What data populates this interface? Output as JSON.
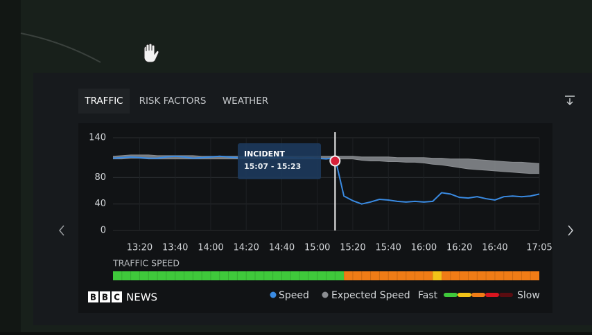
{
  "tabs": [
    "TRAFFIC",
    "RISK FACTORS",
    "WEATHER"
  ],
  "chart_data": {
    "type": "line",
    "x": [
      "13:05",
      "13:10",
      "13:15",
      "13:20",
      "13:25",
      "13:30",
      "13:35",
      "13:40",
      "13:45",
      "13:50",
      "13:55",
      "14:00",
      "14:05",
      "14:10",
      "14:15",
      "14:20",
      "14:25",
      "14:30",
      "14:35",
      "14:40",
      "14:45",
      "14:50",
      "14:55",
      "15:00",
      "15:05",
      "15:10",
      "15:15",
      "15:20",
      "15:25",
      "15:30",
      "15:35",
      "15:40",
      "15:45",
      "15:50",
      "15:55",
      "16:00",
      "16:05",
      "16:10",
      "16:15",
      "16:20",
      "16:25",
      "16:30",
      "16:35",
      "16:40",
      "16:45",
      "16:50",
      "16:55",
      "17:00",
      "17:05"
    ],
    "series": [
      {
        "name": "Speed",
        "color": "#3a8be3",
        "values": [
          109,
          110,
          111,
          110,
          109,
          109,
          111,
          112,
          111,
          109,
          110,
          111,
          112,
          111,
          110,
          111,
          112,
          110,
          110,
          111,
          110,
          109,
          110,
          109,
          108,
          110,
          52,
          45,
          40,
          43,
          47,
          46,
          44,
          43,
          44,
          43,
          44,
          57,
          55,
          50,
          49,
          51,
          48,
          46,
          51,
          52,
          51,
          52,
          55
        ]
      },
      {
        "name": "Expected Speed",
        "color": "#8b8e92",
        "values": [
          112,
          113,
          114,
          114,
          114,
          113,
          113,
          113,
          113,
          113,
          112,
          112,
          112,
          112,
          112,
          112,
          112,
          112,
          112,
          112,
          112,
          112,
          112,
          112,
          112,
          112,
          112,
          112,
          111,
          111,
          111,
          111,
          110,
          110,
          110,
          110,
          109,
          109,
          108,
          108,
          108,
          107,
          106,
          105,
          104,
          103,
          103,
          102,
          101
        ],
        "lower": [
          108,
          108,
          109,
          109,
          108,
          108,
          108,
          108,
          108,
          108,
          108,
          108,
          108,
          108,
          108,
          108,
          108,
          108,
          108,
          108,
          108,
          108,
          108,
          108,
          108,
          108,
          108,
          108,
          106,
          105,
          105,
          104,
          104,
          103,
          103,
          102,
          100,
          99,
          97,
          95,
          93,
          92,
          91,
          90,
          89,
          88,
          87,
          86,
          86
        ]
      }
    ],
    "xlim": [
      "13:05",
      "17:05"
    ],
    "xticks": [
      "13:20",
      "13:40",
      "14:00",
      "14:20",
      "14:40",
      "15:00",
      "15:20",
      "15:40",
      "16:00",
      "16:20",
      "16:40",
      "17:05"
    ],
    "ylim": [
      0,
      140
    ],
    "yticks": [
      0,
      40,
      80,
      140
    ],
    "grid": true,
    "incident": {
      "label": "INCIDENT",
      "time_range": "15:07 - 15:23",
      "x": "15:10",
      "value": 105,
      "color": "#d6213a"
    }
  },
  "traffic_speed": {
    "label": "TRAFFIC SPEED",
    "runs": [
      {
        "color": "#3fc93b",
        "count": 26
      },
      {
        "color": "#f07c16",
        "count": 10
      },
      {
        "color": "#f2c318",
        "count": 1
      },
      {
        "color": "#f07c16",
        "count": 11
      }
    ]
  },
  "legend": {
    "fast": "Fast",
    "slow": "Slow",
    "scale": [
      "#3fc93b",
      "#f2c318",
      "#f07c16",
      "#d8151f",
      "#5a0c10"
    ]
  },
  "brand": {
    "letters": [
      "B",
      "B",
      "C"
    ],
    "word": "NEWS"
  }
}
